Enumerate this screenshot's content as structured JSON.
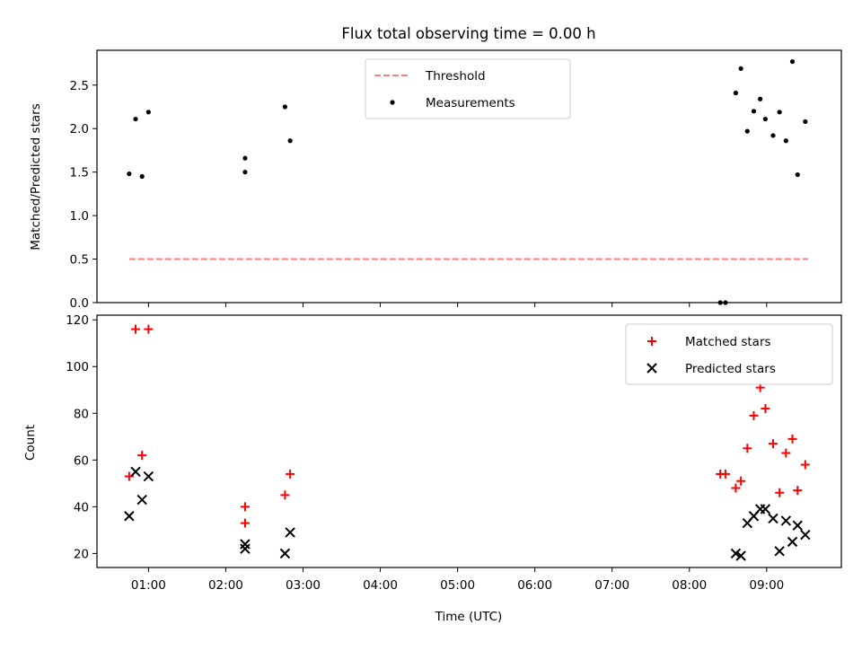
{
  "chart_data": [
    {
      "type": "scatter",
      "title": "Flux total observing time = 0.00 h",
      "xlabel": "",
      "ylabel": "Matched/Predicted stars",
      "ylim": [
        0,
        2.9
      ],
      "xlim": [
        "00:20",
        "09:58"
      ],
      "yticks": [
        {
          "value": 0.0,
          "label": "0.0"
        },
        {
          "value": 0.5,
          "label": "0.5"
        },
        {
          "value": 1.0,
          "label": "1.0"
        },
        {
          "value": 1.5,
          "label": "1.5"
        },
        {
          "value": 2.0,
          "label": "2.0"
        },
        {
          "value": 2.5,
          "label": "2.5"
        }
      ],
      "legend": {
        "placement": "upper-center",
        "entries": [
          {
            "label": "Threshold",
            "style": "dashed-line",
            "color": "#ff7f7f"
          },
          {
            "label": "Measurements",
            "style": "dot",
            "color": "#000000"
          }
        ]
      },
      "threshold": {
        "name": "Threshold",
        "value": 0.5,
        "x_start": "00:45",
        "x_end": "09:32",
        "color": "#ff7f7f"
      },
      "series": [
        {
          "name": "Measurements",
          "color": "#000000",
          "points": [
            {
              "x": "00:45",
              "y": 1.48
            },
            {
              "x": "00:50",
              "y": 2.11
            },
            {
              "x": "00:55",
              "y": 1.45
            },
            {
              "x": "01:00",
              "y": 2.19
            },
            {
              "x": "02:15",
              "y": 1.66
            },
            {
              "x": "02:15",
              "y": 1.5
            },
            {
              "x": "02:46",
              "y": 2.25
            },
            {
              "x": "02:50",
              "y": 1.86
            },
            {
              "x": "08:24",
              "y": 0.0
            },
            {
              "x": "08:28",
              "y": 0.0
            },
            {
              "x": "08:36",
              "y": 2.41
            },
            {
              "x": "08:40",
              "y": 2.69
            },
            {
              "x": "08:45",
              "y": 1.97
            },
            {
              "x": "08:50",
              "y": 2.2
            },
            {
              "x": "08:55",
              "y": 2.34
            },
            {
              "x": "08:59",
              "y": 2.11
            },
            {
              "x": "09:05",
              "y": 1.92
            },
            {
              "x": "09:10",
              "y": 2.19
            },
            {
              "x": "09:15",
              "y": 1.86
            },
            {
              "x": "09:20",
              "y": 2.77
            },
            {
              "x": "09:24",
              "y": 1.47
            },
            {
              "x": "09:30",
              "y": 2.08
            }
          ]
        }
      ]
    },
    {
      "type": "scatter",
      "title": "",
      "xlabel": "Time (UTC)",
      "ylabel": "Count",
      "ylim": [
        14,
        122
      ],
      "xlim": [
        "00:20",
        "09:58"
      ],
      "xticks": [
        "01:00",
        "02:00",
        "03:00",
        "04:00",
        "05:00",
        "06:00",
        "07:00",
        "08:00",
        "09:00"
      ],
      "yticks": [
        {
          "value": 20,
          "label": "20"
        },
        {
          "value": 40,
          "label": "40"
        },
        {
          "value": 60,
          "label": "60"
        },
        {
          "value": 80,
          "label": "80"
        },
        {
          "value": 100,
          "label": "100"
        },
        {
          "value": 120,
          "label": "120"
        }
      ],
      "legend": {
        "placement": "upper-right",
        "entries": [
          {
            "label": "Matched stars",
            "style": "plus",
            "color": "#ff0000"
          },
          {
            "label": "Predicted stars",
            "style": "x",
            "color": "#000000"
          }
        ]
      },
      "series": [
        {
          "name": "Matched stars",
          "color": "#ff0000",
          "marker": "plus",
          "points": [
            {
              "x": "00:45",
              "y": 53
            },
            {
              "x": "00:50",
              "y": 116
            },
            {
              "x": "00:55",
              "y": 62
            },
            {
              "x": "01:00",
              "y": 116
            },
            {
              "x": "02:15",
              "y": 40
            },
            {
              "x": "02:15",
              "y": 33
            },
            {
              "x": "02:46",
              "y": 45
            },
            {
              "x": "02:50",
              "y": 54
            },
            {
              "x": "08:24",
              "y": 54
            },
            {
              "x": "08:28",
              "y": 54
            },
            {
              "x": "08:36",
              "y": 48
            },
            {
              "x": "08:40",
              "y": 51
            },
            {
              "x": "08:45",
              "y": 65
            },
            {
              "x": "08:50",
              "y": 79
            },
            {
              "x": "08:55",
              "y": 91
            },
            {
              "x": "08:59",
              "y": 82
            },
            {
              "x": "09:05",
              "y": 67
            },
            {
              "x": "09:10",
              "y": 46
            },
            {
              "x": "09:15",
              "y": 63
            },
            {
              "x": "09:20",
              "y": 69
            },
            {
              "x": "09:24",
              "y": 47
            },
            {
              "x": "09:30",
              "y": 58
            }
          ]
        },
        {
          "name": "Predicted stars",
          "color": "#000000",
          "marker": "x",
          "points": [
            {
              "x": "00:45",
              "y": 36
            },
            {
              "x": "00:50",
              "y": 55
            },
            {
              "x": "00:55",
              "y": 43
            },
            {
              "x": "01:00",
              "y": 53
            },
            {
              "x": "02:15",
              "y": 24
            },
            {
              "x": "02:15",
              "y": 22
            },
            {
              "x": "02:46",
              "y": 20
            },
            {
              "x": "02:50",
              "y": 29
            },
            {
              "x": "08:36",
              "y": 20
            },
            {
              "x": "08:40",
              "y": 19
            },
            {
              "x": "08:45",
              "y": 33
            },
            {
              "x": "08:50",
              "y": 36
            },
            {
              "x": "08:55",
              "y": 39
            },
            {
              "x": "08:59",
              "y": 39
            },
            {
              "x": "09:05",
              "y": 35
            },
            {
              "x": "09:10",
              "y": 21
            },
            {
              "x": "09:15",
              "y": 34
            },
            {
              "x": "09:20",
              "y": 25
            },
            {
              "x": "09:24",
              "y": 32
            },
            {
              "x": "09:30",
              "y": 28
            }
          ]
        }
      ]
    }
  ]
}
